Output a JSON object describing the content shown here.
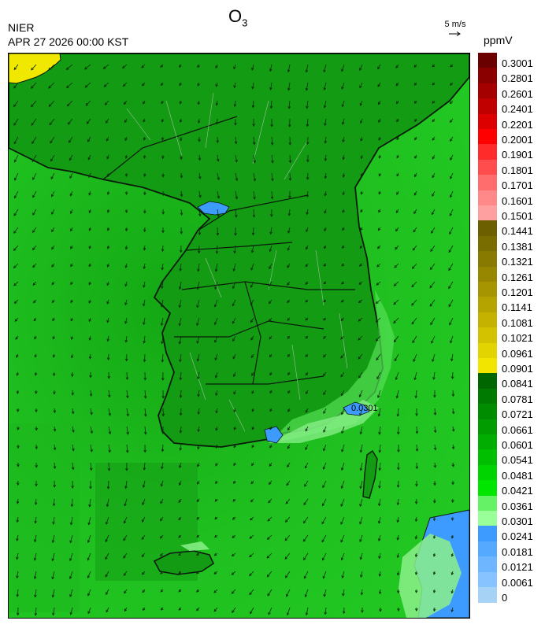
{
  "header": {
    "org": "NIER",
    "timestamp": "APR 27 2026 00:00 KST",
    "title_main": "O",
    "title_sub": "3",
    "wind_reference": "5 m/s",
    "unit": "ppmV"
  },
  "map": {
    "region": "Korean Peninsula",
    "background_color": "#1fbf1f",
    "land_color": "#1aa61a",
    "high_value_patch_color": "#f0e800",
    "low_value_patch_color": "#3d9bff",
    "coast_annotation": "0.0301"
  },
  "legend": {
    "bins": [
      {
        "label": "0.3001",
        "color": "#6b0000"
      },
      {
        "label": "0.2801",
        "color": "#8a0000"
      },
      {
        "label": "0.2601",
        "color": "#a50000"
      },
      {
        "label": "0.2401",
        "color": "#c00000"
      },
      {
        "label": "0.2201",
        "color": "#dd0000"
      },
      {
        "label": "0.2001",
        "color": "#ff0000"
      },
      {
        "label": "0.1901",
        "color": "#ff2a2a"
      },
      {
        "label": "0.1801",
        "color": "#ff4d4d"
      },
      {
        "label": "0.1701",
        "color": "#ff6d6d"
      },
      {
        "label": "0.1601",
        "color": "#ff8888"
      },
      {
        "label": "0.1501",
        "color": "#ffa0a0"
      },
      {
        "label": "0.1441",
        "color": "#6b5f00"
      },
      {
        "label": "0.1381",
        "color": "#7a6d00"
      },
      {
        "label": "0.1321",
        "color": "#887a00"
      },
      {
        "label": "0.1261",
        "color": "#978700"
      },
      {
        "label": "0.1201",
        "color": "#a69500"
      },
      {
        "label": "0.1141",
        "color": "#b5a300"
      },
      {
        "label": "0.1081",
        "color": "#c4b100"
      },
      {
        "label": "0.1021",
        "color": "#d3c200"
      },
      {
        "label": "0.0961",
        "color": "#e2d400"
      },
      {
        "label": "0.0901",
        "color": "#f2e600"
      },
      {
        "label": "0.0841",
        "color": "#006600"
      },
      {
        "label": "0.0781",
        "color": "#007a00"
      },
      {
        "label": "0.0721",
        "color": "#008c00"
      },
      {
        "label": "0.0661",
        "color": "#009c00"
      },
      {
        "label": "0.0601",
        "color": "#00ad00"
      },
      {
        "label": "0.0541",
        "color": "#00bf00"
      },
      {
        "label": "0.0481",
        "color": "#00d400"
      },
      {
        "label": "0.0421",
        "color": "#00e600"
      },
      {
        "label": "0.0361",
        "color": "#66f266"
      },
      {
        "label": "0.0301",
        "color": "#99ff99"
      },
      {
        "label": "0.0241",
        "color": "#3d9bff"
      },
      {
        "label": "0.0181",
        "color": "#55a9ff"
      },
      {
        "label": "0.0121",
        "color": "#6eb6ff"
      },
      {
        "label": "0.0061",
        "color": "#87c4ff"
      },
      {
        "label": "0",
        "color": "#a6d3f5"
      }
    ]
  }
}
